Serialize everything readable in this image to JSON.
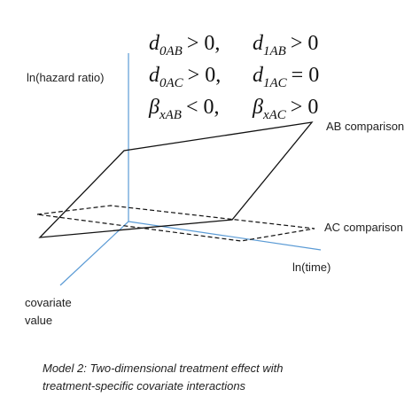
{
  "formulas": [
    {
      "symbol": "d",
      "subscript": "0AB",
      "relation": "> 0,"
    },
    {
      "symbol": "d",
      "subscript": "1AB",
      "relation": "> 0"
    },
    {
      "symbol": "d",
      "subscript": "0AC",
      "relation": "> 0,"
    },
    {
      "symbol": "d",
      "subscript": "1AC",
      "relation": "= 0"
    },
    {
      "symbol": "β",
      "subscript": "xAB",
      "relation": "< 0,"
    },
    {
      "symbol": "β",
      "subscript": "xAC",
      "relation": "> 0"
    }
  ],
  "axes": {
    "y_label": "ln(hazard ratio)",
    "x_label": "ln(time)",
    "z_label_lines": [
      "covariate",
      "value"
    ]
  },
  "planes": {
    "ab_label": "AB comparison",
    "ac_label": "AC comparison"
  },
  "caption_lines": [
    "Model 2: Two-dimensional treatment effect with",
    "treatment-specific covariate interactions"
  ]
}
